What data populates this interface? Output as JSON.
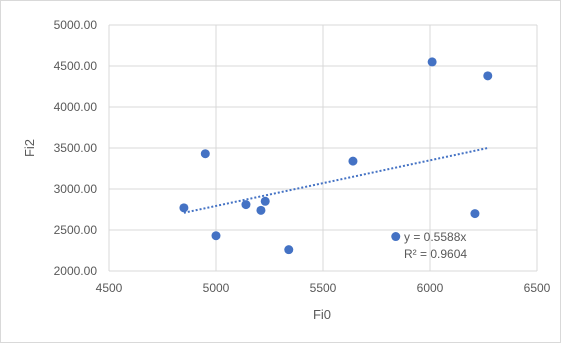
{
  "chart_data": {
    "type": "scatter",
    "xlabel": "Fi0",
    "ylabel": "Fi2",
    "xlim": [
      4500,
      6500
    ],
    "ylim": [
      2000,
      5000
    ],
    "x_ticks": [
      "4500",
      "5000",
      "5500",
      "6000",
      "6500"
    ],
    "y_ticks": [
      "2000.00",
      "2500.00",
      "3000.00",
      "3500.00",
      "4000.00",
      "4500.00",
      "5000.00"
    ],
    "grid": true,
    "legend": "none",
    "marker_color": "#4472c4",
    "trendline_color": "#4472c4",
    "points": [
      {
        "x": 4850,
        "y": 2770
      },
      {
        "x": 4950,
        "y": 3430
      },
      {
        "x": 5000,
        "y": 2430
      },
      {
        "x": 5140,
        "y": 2810
      },
      {
        "x": 5210,
        "y": 2740
      },
      {
        "x": 5230,
        "y": 2850
      },
      {
        "x": 5340,
        "y": 2260
      },
      {
        "x": 5640,
        "y": 3340
      },
      {
        "x": 5840,
        "y": 2420
      },
      {
        "x": 6010,
        "y": 4550
      },
      {
        "x": 6210,
        "y": 2700
      },
      {
        "x": 6270,
        "y": 4380
      }
    ],
    "trendline": {
      "type": "linear",
      "from": {
        "x": 4850,
        "y": 2710
      },
      "to": {
        "x": 6270,
        "y": 3500
      },
      "equation": "y = 0.5588x",
      "r_squared": "R² = 0.9604"
    }
  }
}
